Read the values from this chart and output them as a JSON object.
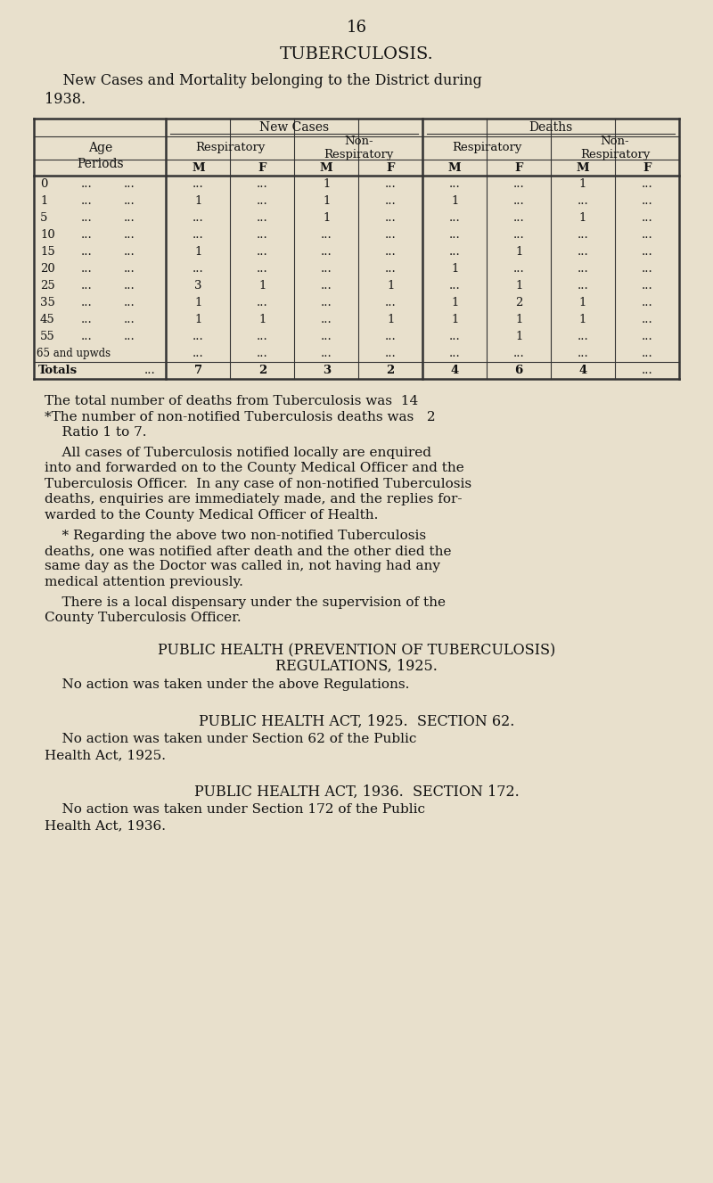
{
  "page_number": "16",
  "bg_color": "#e8e0cc",
  "title": "TUBERCULOSIS.",
  "subtitle_line1": "    New Cases and Mortality belonging to the District during",
  "subtitle_line2": "1938.",
  "table": {
    "rows": [
      [
        "0",
        "...",
        "...",
        "1",
        "...",
        "...",
        "...",
        "1",
        "..."
      ],
      [
        "1",
        "1",
        "...",
        "1",
        "...",
        "1",
        "...",
        "...",
        "..."
      ],
      [
        "5",
        "...",
        "...",
        "1",
        "...",
        "...",
        "...",
        "1",
        "..."
      ],
      [
        "10",
        "...",
        "...",
        "...",
        "...",
        "...",
        "...",
        "...",
        "..."
      ],
      [
        "15",
        "1",
        "...",
        "...",
        "...",
        "...",
        "1",
        "...",
        "..."
      ],
      [
        "20",
        "...",
        "...",
        "...",
        "...",
        "1",
        "...",
        "...",
        "..."
      ],
      [
        "25",
        "3",
        "1",
        "...",
        "1",
        "...",
        "1",
        "...",
        "..."
      ],
      [
        "35",
        "1",
        "...",
        "...",
        "...",
        "1",
        "2",
        "1",
        "..."
      ],
      [
        "45",
        "1",
        "1",
        "...",
        "1",
        "1",
        "1",
        "1",
        "..."
      ],
      [
        "55",
        "...",
        "...",
        "...",
        "...",
        "...",
        "1",
        "...",
        "..."
      ],
      [
        "65 and upwds",
        "...",
        "...",
        "...",
        "...",
        "...",
        "...",
        "...",
        "..."
      ],
      [
        "Totals",
        "7",
        "2",
        "3",
        "2",
        "4",
        "6",
        "4",
        "..."
      ]
    ]
  },
  "para1": "The total number of deaths from Tuberculosis was  14",
  "para2": "*The number of non-notified Tuberculosis deaths was   2",
  "para3": "    Ratio 1 to 7.",
  "para4a": "    All cases of Tuberculosis notified locally are enquired",
  "para4b": "into and forwarded on to the County Medical Officer and the",
  "para4c": "Tuberculosis Officer.  In any case of non-notified Tuberculosis",
  "para4d": "deaths, enquiries are immediately made, and the replies for-",
  "para4e": "warded to the County Medical Officer of Health.",
  "para5a": "    * Regarding the above two non-notified Tuberculosis",
  "para5b": "deaths, one was notified after death and the other died the",
  "para5c": "same day as the Doctor was called in, not having had any",
  "para5d": "medical attention previously.",
  "para6a": "    There is a local dispensary under the supervision of the",
  "para6b": "County Tuberculosis Officer.",
  "sec1_h1": "PUBLIC HEALTH (PREVENTION OF TUBERCULOSIS)",
  "sec1_h2": "REGULATIONS, 1925.",
  "sec1_b": "    No action was taken under the above Regulations.",
  "sec2_h": "PUBLIC HEALTH ACT, 1925.  SECTION 62.",
  "sec2_b1": "    No action was taken under Section 62 of the Public",
  "sec2_b2": "Health Act, 1925.",
  "sec3_h": "PUBLIC HEALTH ACT, 1936.  SECTION 172.",
  "sec3_b1": "    No action was taken under Section 172 of the Public",
  "sec3_b2": "Health Act, 1936."
}
